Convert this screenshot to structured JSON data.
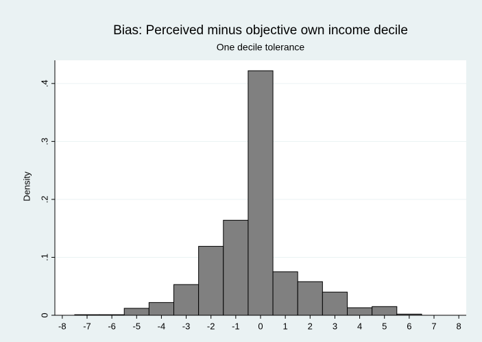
{
  "chart_data": {
    "type": "histogram",
    "title": "Bias: Perceived minus objective own income decile",
    "subtitle": "One decile tolerance",
    "y_label": "Density",
    "bins": [
      -7.5,
      -6.5,
      -5.5,
      -4.5,
      -3.5,
      -2.5,
      -1.5,
      -0.5,
      0.5,
      1.5,
      2.5,
      3.5,
      4.5,
      5.5,
      6.5
    ],
    "values": [
      0.001,
      0.001,
      0.012,
      0.022,
      0.053,
      0.119,
      0.164,
      0.422,
      0.075,
      0.058,
      0.04,
      0.013,
      0.015,
      0.002
    ],
    "color": "#808080",
    "xlim": [
      -8.3,
      8.3
    ],
    "xticks": [
      -8,
      -7,
      -6,
      -5,
      -4,
      -3,
      -2,
      -1,
      0,
      1,
      2,
      3,
      4,
      5,
      6,
      7,
      8
    ],
    "ylim": [
      0,
      0.44
    ],
    "yticks": [
      0,
      {
        "value": 0.1,
        "label": ".1"
      },
      {
        "value": 0.2,
        "label": ".2"
      },
      {
        "value": 0.3,
        "label": ".3"
      },
      {
        "value": 0.4,
        "label": ".4"
      }
    ],
    "grid": true
  }
}
